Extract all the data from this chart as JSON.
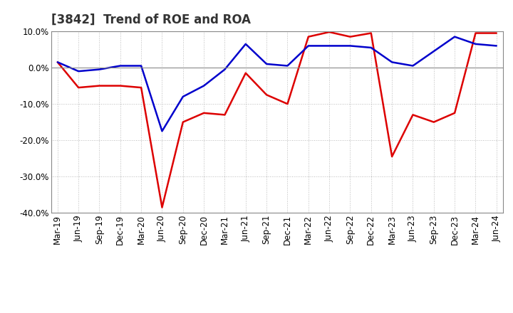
{
  "title": "[3842]  Trend of ROE and ROA",
  "labels": [
    "Mar-19",
    "Jun-19",
    "Sep-19",
    "Dec-19",
    "Mar-20",
    "Jun-20",
    "Sep-20",
    "Dec-20",
    "Mar-21",
    "Jun-21",
    "Sep-21",
    "Dec-21",
    "Mar-22",
    "Jun-22",
    "Sep-22",
    "Dec-22",
    "Mar-23",
    "Jun-23",
    "Sep-23",
    "Dec-23",
    "Mar-24",
    "Jun-24"
  ],
  "ROE": [
    1.5,
    -5.5,
    -5.0,
    -5.0,
    -5.5,
    -38.5,
    -15.0,
    -12.5,
    -13.0,
    -1.5,
    -7.5,
    -10.0,
    8.5,
    9.8,
    8.5,
    9.5,
    -24.5,
    -13.0,
    -15.0,
    -12.5,
    9.5,
    9.5
  ],
  "ROA": [
    1.5,
    -1.0,
    -0.5,
    0.5,
    0.5,
    -17.5,
    -8.0,
    -5.0,
    -0.5,
    6.5,
    1.0,
    0.5,
    6.0,
    6.0,
    6.0,
    5.5,
    1.5,
    0.5,
    4.5,
    8.5,
    6.5,
    6.0
  ],
  "ROE_color": "#dd0000",
  "ROA_color": "#0000cc",
  "ylim": [
    -40,
    10
  ],
  "yticks": [
    -40,
    -30,
    -20,
    -10,
    0,
    10
  ],
  "background_color": "#ffffff",
  "plot_bg_color": "#ffffff",
  "grid_color": "#aaaaaa",
  "title_fontsize": 12,
  "legend_fontsize": 10,
  "tick_fontsize": 8.5
}
